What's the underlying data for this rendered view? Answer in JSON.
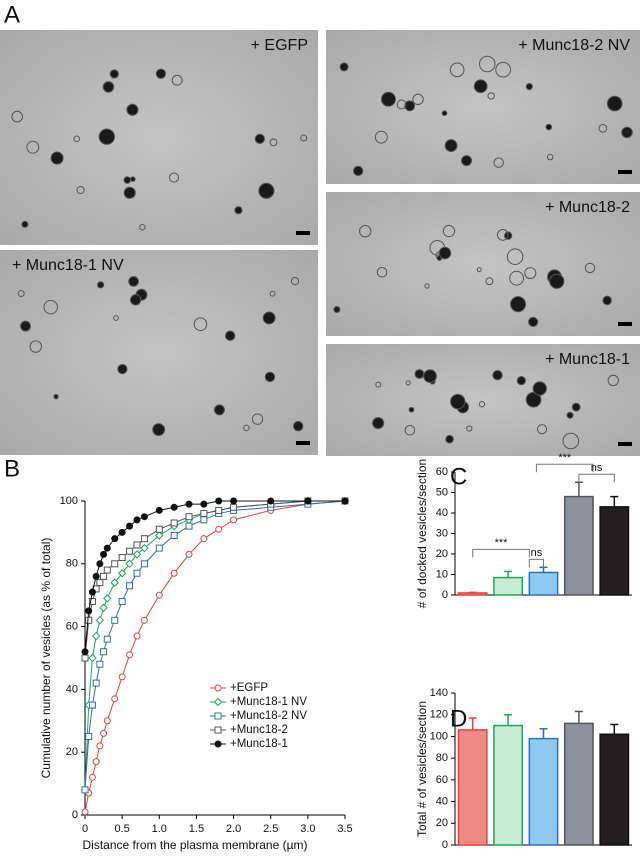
{
  "panel_labels": [
    "A",
    "B",
    "C",
    "D"
  ],
  "micrographs": [
    {
      "label": "+ EGFP"
    },
    {
      "label": "+ Munc18-1 NV"
    },
    {
      "label": "+ Munc18-2 NV"
    },
    {
      "label": "+ Munc18-2"
    },
    {
      "label": "+ Munc18-1"
    }
  ],
  "chart_data": [
    {
      "type": "line",
      "x_label": "Distance from the plasma membrane (µm)",
      "y_label": "Cumulative number of vesicles (as % of total)",
      "x": [
        0,
        0.05,
        0.1,
        0.15,
        0.2,
        0.25,
        0.3,
        0.4,
        0.5,
        0.6,
        0.7,
        0.8,
        1.0,
        1.2,
        1.4,
        1.6,
        1.8,
        2.0,
        2.5,
        3.0,
        3.5
      ],
      "series": [
        {
          "name": "+EGFP",
          "color": "#e8413c",
          "marker": "open-circle",
          "values": [
            1,
            7,
            12,
            17,
            22,
            26,
            30,
            37,
            44,
            51,
            57,
            62,
            70,
            77,
            83,
            88,
            91,
            94,
            97,
            99,
            100
          ]
        },
        {
          "name": "+Munc18-1 NV",
          "color": "#1fa55a",
          "marker": "diamond",
          "values": [
            8,
            35,
            50,
            57,
            62,
            66,
            69,
            74,
            77,
            80,
            83,
            85,
            89,
            92,
            94,
            96,
            97,
            98,
            99,
            100,
            100
          ]
        },
        {
          "name": "+Munc18-2 NV",
          "color": "#2b6fc4",
          "marker": "square",
          "values": [
            8,
            25,
            35,
            42,
            48,
            52,
            56,
            62,
            68,
            73,
            77,
            80,
            85,
            89,
            92,
            94,
            96,
            97,
            98,
            99,
            100
          ]
        },
        {
          "name": "+Munc18-2",
          "color": "#555555",
          "marker": "square",
          "values": [
            50,
            62,
            68,
            72,
            74,
            76,
            78,
            80,
            82,
            84,
            86,
            88,
            91,
            93,
            95,
            96,
            97,
            98,
            99,
            100,
            100
          ]
        },
        {
          "name": "+Munc18-1",
          "color": "#111111",
          "marker": "filled-circle",
          "values": [
            52,
            65,
            71,
            76,
            80,
            83,
            85,
            88,
            90,
            92,
            94,
            95,
            97,
            98,
            99,
            99,
            100,
            100,
            100,
            100,
            100
          ]
        }
      ],
      "xlim": [
        0,
        3.5
      ],
      "xticks": [
        0,
        0.5,
        {
          "value": 1,
          "label": "1.0"
        },
        1.5,
        {
          "value": 2,
          "label": "2.0"
        },
        2.5,
        {
          "value": 3,
          "label": "3.0"
        },
        3.5
      ],
      "ylim": [
        0,
        100
      ],
      "yticks": [
        0,
        20,
        40,
        60,
        80,
        100
      ],
      "legend": "center right"
    },
    {
      "type": "bar",
      "y_label": "# of docked vesicles/section",
      "values": [
        1,
        8.5,
        11,
        48,
        43
      ],
      "errors": [
        0.3,
        3,
        2.5,
        7,
        5
      ],
      "colors": [
        "#f08a86",
        "#c9ecd5",
        "#8fcbf1",
        "#8c939c",
        "#231f20"
      ],
      "edge_colors": [
        "#e8413c",
        "#1fa55a",
        "#2b6fc4",
        "#555555",
        "#111111"
      ],
      "ylim": [
        0,
        60
      ],
      "yticks": [
        0,
        10,
        20,
        30,
        40,
        50,
        60
      ],
      "annotations": [
        {
          "text": "***",
          "bars": [
            0,
            1.6
          ]
        },
        {
          "text": "ns",
          "bars": [
            1.6,
            2
          ]
        },
        {
          "text": "***",
          "bars": [
            1.8,
            3.4
          ]
        },
        {
          "text": "ns",
          "bars": [
            3,
            4
          ]
        }
      ]
    },
    {
      "type": "bar",
      "y_label": "Total # of vesicles/section",
      "values": [
        106,
        110,
        98,
        112,
        102
      ],
      "errors": [
        11,
        10,
        9,
        11,
        9
      ],
      "colors": [
        "#f08a86",
        "#c9ecd5",
        "#8fcbf1",
        "#8c939c",
        "#231f20"
      ],
      "edge_colors": [
        "#e8413c",
        "#1fa55a",
        "#2b6fc4",
        "#555555",
        "#111111"
      ],
      "ylim": [
        0,
        140
      ],
      "yticks": [
        0,
        20,
        40,
        60,
        80,
        100,
        120,
        140
      ]
    }
  ]
}
